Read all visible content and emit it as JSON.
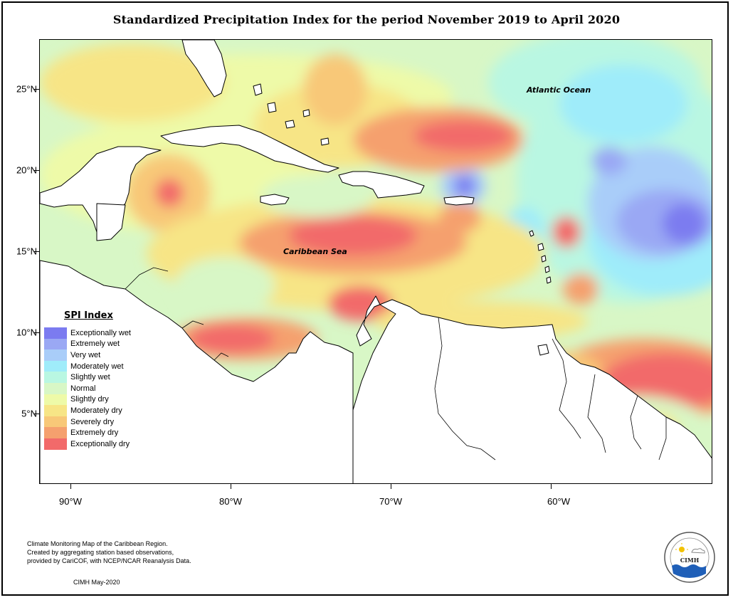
{
  "title": "Standardized Precipitation Index for the period November 2019 to April 2020",
  "map": {
    "lon_range": [
      -92,
      -50
    ],
    "lat_range": [
      1,
      28
    ],
    "y_axis_ticks": [
      {
        "lat": 25,
        "label": "25°N"
      },
      {
        "lat": 20,
        "label": "20°N"
      },
      {
        "lat": 15,
        "label": "15°N"
      },
      {
        "lat": 10,
        "label": "10°N"
      },
      {
        "lat": 5,
        "label": "5°N"
      }
    ],
    "x_axis_ticks": [
      {
        "lon": -90,
        "label": "90°W"
      },
      {
        "lon": -80,
        "label": "80°W"
      },
      {
        "lon": -70,
        "label": "70°W"
      },
      {
        "lon": -60,
        "label": "60°W"
      }
    ],
    "ocean_labels": {
      "atlantic": "Atlantic Ocean",
      "caribbean": "Caribbean Sea"
    }
  },
  "legend": {
    "title": "SPI Index",
    "items": [
      {
        "label": "Exceptionally wet",
        "color": "#7b7bf0"
      },
      {
        "label": "Extremely wet",
        "color": "#9aa8f4"
      },
      {
        "label": "Very wet",
        "color": "#a9cdf9"
      },
      {
        "label": "Moderately wet",
        "color": "#9fecfa"
      },
      {
        "label": "Slightly wet",
        "color": "#b9f7e2"
      },
      {
        "label": "Normal",
        "color": "#d8f7c6"
      },
      {
        "label": "Slightly dry",
        "color": "#eefaa8"
      },
      {
        "label": "Moderately dry",
        "color": "#f7e586"
      },
      {
        "label": "Severely dry",
        "color": "#f8c878"
      },
      {
        "label": "Extremely dry",
        "color": "#f5a06e"
      },
      {
        "label": "Exceptionally dry",
        "color": "#f26a6a"
      }
    ]
  },
  "footer": {
    "line1": "Climate Monitoring Map of the Caribbean Region.",
    "line2": "Created by aggregating station based observations,",
    "line3": "provided by CariCOF, with NCEP/NCAR Reanalysis Data.",
    "credit": "CIMH May-2020"
  },
  "logo": {
    "text": "CIMH",
    "icon": "cimh-logo"
  }
}
